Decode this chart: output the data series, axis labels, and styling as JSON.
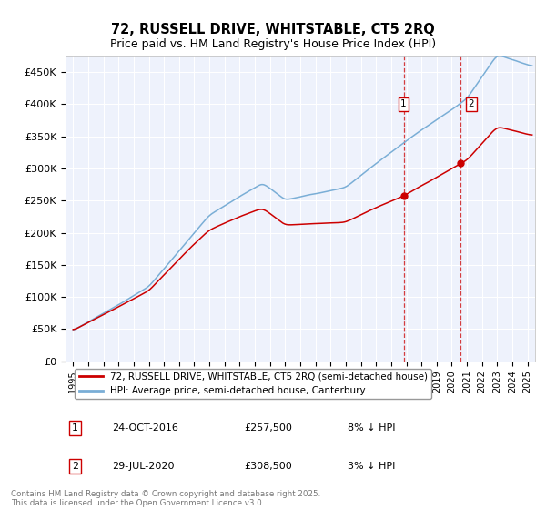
{
  "title": "72, RUSSELL DRIVE, WHITSTABLE, CT5 2RQ",
  "subtitle": "Price paid vs. HM Land Registry's House Price Index (HPI)",
  "ylabel_ticks": [
    "£0",
    "£50K",
    "£100K",
    "£150K",
    "£200K",
    "£250K",
    "£300K",
    "£350K",
    "£400K",
    "£450K"
  ],
  "ytick_values": [
    0,
    50000,
    100000,
    150000,
    200000,
    250000,
    300000,
    350000,
    400000,
    450000
  ],
  "ylim": [
    0,
    475000
  ],
  "xlim_start": 1994.5,
  "xlim_end": 2025.5,
  "sale1_date": 2016.82,
  "sale1_price": 257500,
  "sale1_label": "1",
  "sale2_date": 2020.58,
  "sale2_price": 308500,
  "sale2_label": "2",
  "legend_line1": "72, RUSSELL DRIVE, WHITSTABLE, CT5 2RQ (semi-detached house)",
  "legend_line2": "HPI: Average price, semi-detached house, Canterbury",
  "sale1_date_str": "24-OCT-2016",
  "sale1_price_str": "£257,500",
  "sale1_hpi_str": "8% ↓ HPI",
  "sale2_date_str": "29-JUL-2020",
  "sale2_price_str": "£308,500",
  "sale2_hpi_str": "3% ↓ HPI",
  "footer": "Contains HM Land Registry data © Crown copyright and database right 2025.\nThis data is licensed under the Open Government Licence v3.0.",
  "line_color_red": "#cc0000",
  "line_color_blue": "#7aaed6",
  "background_color": "#eef2fc",
  "grid_color": "#ffffff",
  "annotation_box_color": "#cc0000"
}
